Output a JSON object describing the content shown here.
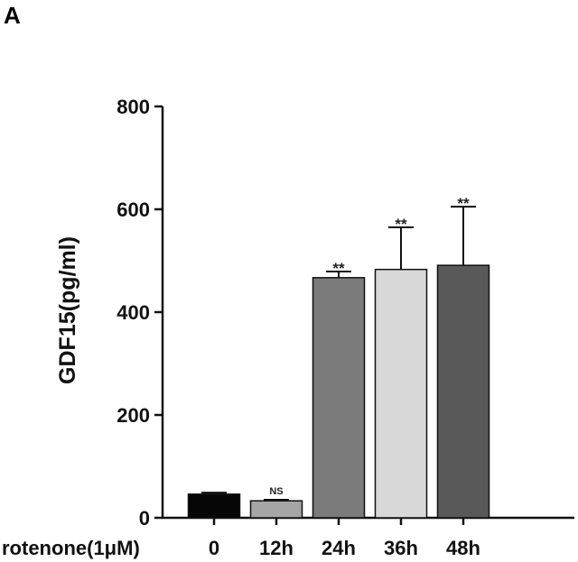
{
  "panel_label": "A",
  "chart_data": {
    "type": "bar",
    "title": "",
    "ylabel": "GDF15(pg/ml)",
    "xlabel": "rotenone(1μM)",
    "ylim": [
      0,
      800
    ],
    "yticks": [
      0,
      200,
      400,
      600,
      800
    ],
    "categories": [
      "0",
      "12h",
      "24h",
      "36h",
      "48h"
    ],
    "values": [
      46,
      33,
      467,
      483,
      491
    ],
    "errors": [
      3,
      2,
      12,
      82,
      114
    ],
    "annotations": [
      "",
      "NS",
      "**",
      "**",
      "**"
    ],
    "bar_colors": [
      "#060606",
      "#a6a6a6",
      "#7b7b7b",
      "#d8d8d8",
      "#595959"
    ],
    "grid": false,
    "legend": "none"
  }
}
